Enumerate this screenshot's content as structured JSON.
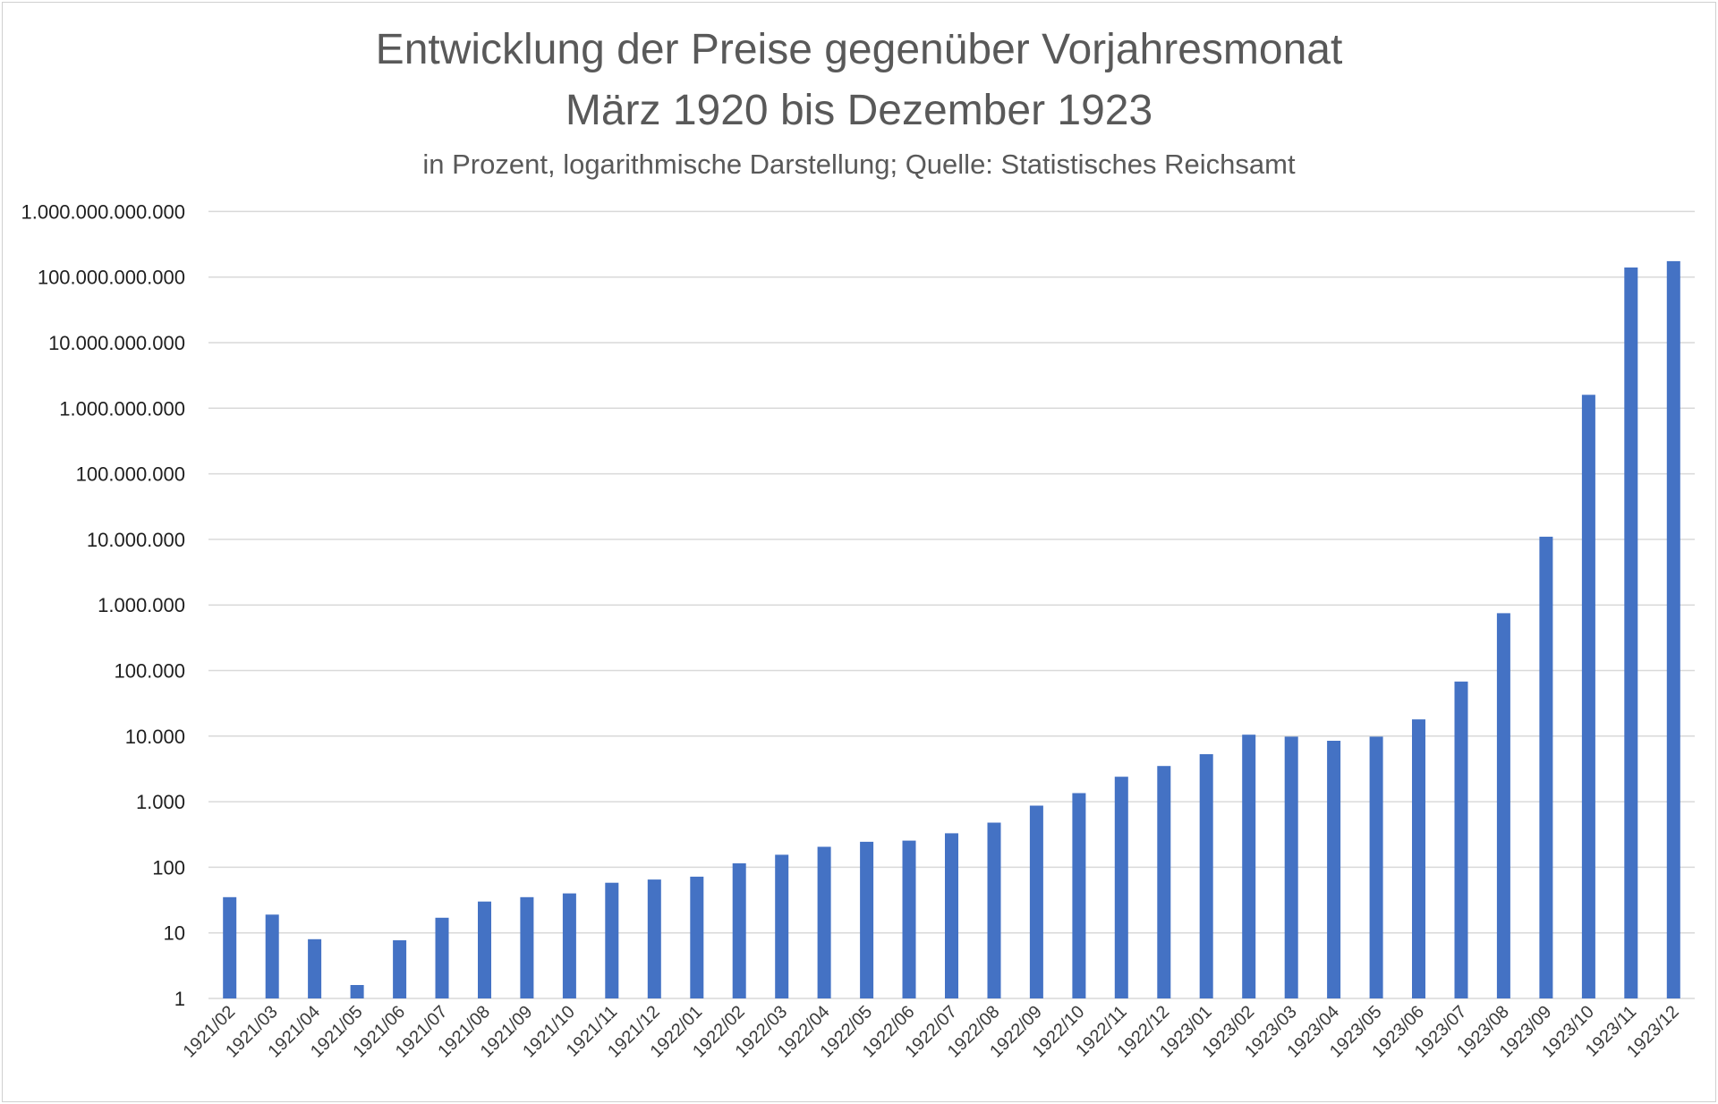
{
  "chart_data": {
    "type": "bar",
    "title": "Entwicklung der Preise gegenüber Vorjahresmonat",
    "title_line2": "März 1920 bis Dezember 1923",
    "subtitle": "in Prozent, logarithmische Darstellung; Quelle: Statistisches Reichsamt",
    "xlabel": "",
    "ylabel": "",
    "yscale": "log",
    "ylim": [
      1,
      1000000000000
    ],
    "grid": true,
    "bar_color": "#4472C4",
    "grid_color": "#d9d9d9",
    "y_tick_labels": [
      "1",
      "10",
      "100",
      "1.000",
      "10.000",
      "100.000",
      "1.000.000",
      "10.000.000",
      "100.000.000",
      "1.000.000.000",
      "10.000.000.000",
      "100.000.000.000",
      "1.000.000.000.000"
    ],
    "categories": [
      "1921/02",
      "1921/03",
      "1921/04",
      "1921/05",
      "1921/06",
      "1921/07",
      "1921/08",
      "1921/09",
      "1921/10",
      "1921/11",
      "1921/12",
      "1922/01",
      "1922/02",
      "1922/03",
      "1922/04",
      "1922/05",
      "1922/06",
      "1922/07",
      "1922/08",
      "1922/09",
      "1922/10",
      "1922/11",
      "1922/12",
      "1923/01",
      "1923/02",
      "1923/03",
      "1923/04",
      "1923/05",
      "1923/06",
      "1923/07",
      "1923/08",
      "1923/09",
      "1923/10",
      "1923/11",
      "1923/12"
    ],
    "values": [
      35,
      19,
      8,
      1.6,
      7.7,
      17,
      30,
      35,
      40,
      58,
      65,
      72,
      115,
      155,
      205,
      245,
      255,
      330,
      480,
      870,
      1350,
      2400,
      3500,
      5300,
      10500,
      9800,
      8500,
      9800,
      18000,
      68000,
      750000,
      11000000,
      1600000000,
      140000000000,
      175000000000
    ]
  }
}
